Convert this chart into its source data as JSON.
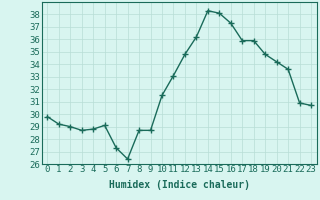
{
  "x": [
    0,
    1,
    2,
    3,
    4,
    5,
    6,
    7,
    8,
    9,
    10,
    11,
    12,
    13,
    14,
    15,
    16,
    17,
    18,
    19,
    20,
    21,
    22,
    23
  ],
  "y": [
    29.8,
    29.2,
    29.0,
    28.7,
    28.8,
    29.1,
    27.3,
    26.4,
    28.7,
    28.7,
    31.5,
    33.1,
    34.8,
    36.2,
    38.3,
    38.1,
    37.3,
    35.9,
    35.9,
    34.8,
    34.2,
    33.6,
    30.9,
    30.7
  ],
  "line_color": "#1a6b5a",
  "marker": "+",
  "markersize": 4,
  "linewidth": 1.0,
  "bg_color": "#d8f5f0",
  "grid_color": "#b8ddd6",
  "xlabel": "Humidex (Indice chaleur)",
  "ylim": [
    26,
    39
  ],
  "yticks": [
    26,
    27,
    28,
    29,
    30,
    31,
    32,
    33,
    34,
    35,
    36,
    37,
    38
  ],
  "xticks": [
    0,
    1,
    2,
    3,
    4,
    5,
    6,
    7,
    8,
    9,
    10,
    11,
    12,
    13,
    14,
    15,
    16,
    17,
    18,
    19,
    20,
    21,
    22,
    23
  ],
  "xtick_labels": [
    "0",
    "1",
    "2",
    "3",
    "4",
    "5",
    "6",
    "7",
    "8",
    "9",
    "10",
    "11",
    "12",
    "13",
    "14",
    "15",
    "16",
    "17",
    "18",
    "19",
    "20",
    "21",
    "22",
    "23"
  ],
  "xlabel_fontsize": 7,
  "tick_fontsize": 6.5
}
